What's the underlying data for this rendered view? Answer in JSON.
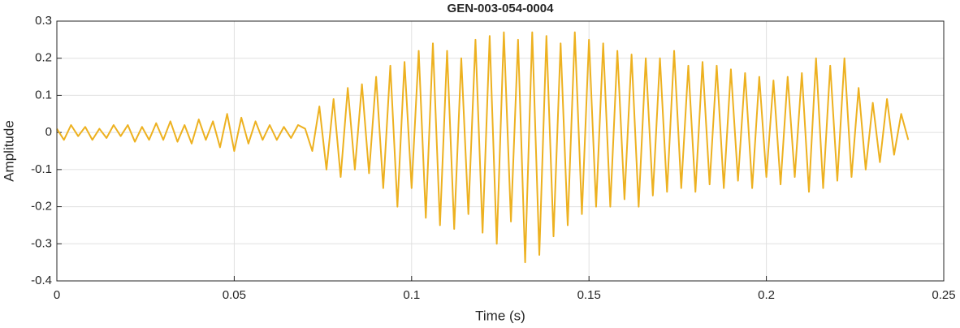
{
  "chart_data": {
    "type": "line",
    "title": "GEN-003-054-0004",
    "xlabel": "Time (s)",
    "ylabel": "Amplitude",
    "color": "#EDB120",
    "grid": true,
    "xlim": [
      0,
      0.25
    ],
    "xticks": [
      0,
      0.05,
      0.1,
      0.15,
      0.2,
      0.25
    ],
    "ylim": [
      -0.4,
      0.3
    ],
    "yticks": [
      -0.4,
      -0.3,
      -0.2,
      -0.1,
      0,
      0.1,
      0.2,
      0.3
    ],
    "x": [
      0,
      0.002,
      0.004,
      0.006,
      0.008,
      0.01,
      0.012,
      0.014,
      0.016,
      0.018,
      0.02,
      0.022,
      0.024,
      0.026,
      0.028,
      0.03,
      0.032,
      0.034,
      0.036,
      0.038,
      0.04,
      0.042,
      0.044,
      0.046,
      0.048,
      0.05,
      0.052,
      0.054,
      0.056,
      0.058,
      0.06,
      0.062,
      0.064,
      0.066,
      0.068,
      0.07,
      0.072,
      0.074,
      0.076,
      0.078,
      0.08,
      0.082,
      0.084,
      0.086,
      0.088,
      0.09,
      0.092,
      0.094,
      0.096,
      0.098,
      0.1,
      0.102,
      0.104,
      0.106,
      0.108,
      0.11,
      0.112,
      0.114,
      0.116,
      0.118,
      0.12,
      0.122,
      0.124,
      0.126,
      0.128,
      0.13,
      0.132,
      0.134,
      0.136,
      0.138,
      0.14,
      0.142,
      0.144,
      0.146,
      0.148,
      0.15,
      0.152,
      0.154,
      0.156,
      0.158,
      0.16,
      0.162,
      0.164,
      0.166,
      0.168,
      0.17,
      0.172,
      0.174,
      0.176,
      0.178,
      0.18,
      0.182,
      0.184,
      0.186,
      0.188,
      0.19,
      0.192,
      0.194,
      0.196,
      0.198,
      0.2,
      0.202,
      0.204,
      0.206,
      0.208,
      0.21,
      0.212,
      0.214,
      0.216,
      0.218,
      0.22,
      0.222,
      0.224,
      0.226,
      0.228,
      0.23,
      0.232,
      0.234,
      0.236,
      0.238,
      0.24
    ],
    "values": [
      0.01,
      -0.02,
      0.02,
      -0.01,
      0.015,
      -0.02,
      0.01,
      -0.015,
      0.02,
      -0.01,
      0.02,
      -0.025,
      0.015,
      -0.02,
      0.025,
      -0.02,
      0.03,
      -0.025,
      0.02,
      -0.03,
      0.035,
      -0.02,
      0.03,
      -0.04,
      0.05,
      -0.05,
      0.04,
      -0.03,
      0.03,
      -0.02,
      0.02,
      -0.02,
      0.015,
      -0.015,
      0.02,
      0.01,
      -0.05,
      0.07,
      -0.1,
      0.09,
      -0.12,
      0.12,
      -0.1,
      0.13,
      -0.11,
      0.15,
      -0.15,
      0.18,
      -0.2,
      0.19,
      -0.15,
      0.22,
      -0.23,
      0.24,
      -0.25,
      0.22,
      -0.26,
      0.2,
      -0.22,
      0.25,
      -0.27,
      0.26,
      -0.3,
      0.27,
      -0.24,
      0.25,
      -0.35,
      0.27,
      -0.33,
      0.26,
      -0.28,
      0.24,
      -0.25,
      0.27,
      -0.22,
      0.25,
      -0.2,
      0.24,
      -0.2,
      0.22,
      -0.18,
      0.21,
      -0.2,
      0.2,
      -0.17,
      0.2,
      -0.16,
      0.22,
      -0.15,
      0.18,
      -0.16,
      0.19,
      -0.14,
      0.18,
      -0.15,
      0.17,
      -0.13,
      0.16,
      -0.15,
      0.15,
      -0.12,
      0.14,
      -0.14,
      0.15,
      -0.12,
      0.16,
      -0.16,
      0.2,
      -0.15,
      0.18,
      -0.13,
      0.2,
      -0.12,
      0.12,
      -0.1,
      0.08,
      -0.08,
      0.09,
      -0.06,
      0.05,
      -0.02
    ]
  }
}
